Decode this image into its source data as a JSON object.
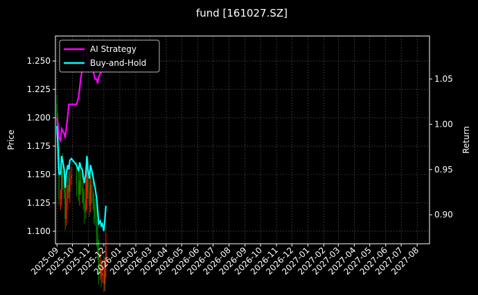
{
  "chart_data": {
    "type": "line",
    "title": "fund [161027.SZ]",
    "ylabel_left": "Price",
    "ylabel_right": "Return",
    "xlim": [
      "2025-08-29",
      "2027-08-25"
    ],
    "ylim_left": [
      1.089,
      1.272
    ],
    "ylim_right": [
      0.868,
      1.0975
    ],
    "grid": true,
    "legend_placement": "upper-left",
    "x_ticks": [
      "2025-09",
      "2025-10",
      "2025-11",
      "2025-12",
      "2026-01",
      "2026-02",
      "2026-03",
      "2026-04",
      "2026-05",
      "2026-06",
      "2026-07",
      "2026-08",
      "2026-09",
      "2026-10",
      "2026-11",
      "2026-12",
      "2027-01",
      "2027-02",
      "2027-03",
      "2027-04",
      "2027-05",
      "2027-06",
      "2027-07",
      "2027-08"
    ],
    "y_ticks_left": [
      "1.100",
      "1.125",
      "1.150",
      "1.175",
      "1.200",
      "1.225",
      "1.250"
    ],
    "y_ticks_right": [
      "0.90",
      "0.95",
      "1.00",
      "1.05"
    ],
    "price_per_return": 1.1945,
    "dates": [
      "2025-09-01",
      "2025-09-03",
      "2025-09-05",
      "2025-09-08",
      "2025-09-10",
      "2025-09-12",
      "2025-09-15",
      "2025-09-17",
      "2025-09-19",
      "2025-09-22",
      "2025-09-24",
      "2025-09-26",
      "2025-09-29",
      "2025-10-09",
      "2025-10-13",
      "2025-10-15",
      "2025-10-17",
      "2025-10-20",
      "2025-10-22",
      "2025-10-24",
      "2025-10-27",
      "2025-10-29",
      "2025-10-31",
      "2025-11-03",
      "2025-11-05",
      "2025-11-07",
      "2025-11-10",
      "2025-11-12",
      "2025-11-14",
      "2025-11-17",
      "2025-11-19",
      "2025-11-21",
      "2025-11-24",
      "2025-11-26",
      "2025-11-28",
      "2025-12-01",
      "2025-12-03",
      "2025-12-05"
    ],
    "series": [
      {
        "name": "AI Strategy",
        "color": "#ff00ff",
        "values": [
          1.007,
          1.0,
          0.985,
          0.982,
          0.995,
          0.993,
          0.99,
          0.985,
          0.995,
          1.01,
          1.022,
          1.022,
          1.022,
          1.022,
          1.03,
          1.04,
          1.05,
          1.06,
          1.075,
          1.085,
          1.085,
          1.08,
          1.07,
          1.065,
          1.07,
          1.065,
          1.06,
          1.055,
          1.05,
          1.05,
          1.045,
          1.052,
          1.056,
          1.058,
          1.06,
          1.06,
          1.06,
          1.062
        ]
      },
      {
        "name": "Buy-and-Hold",
        "color": "#00ffff",
        "values": [
          0.998,
          0.975,
          0.945,
          0.945,
          0.965,
          0.96,
          0.95,
          0.93,
          0.945,
          0.955,
          0.95,
          0.96,
          0.962,
          0.955,
          0.948,
          0.958,
          0.953,
          0.95,
          0.942,
          0.935,
          0.945,
          0.965,
          0.95,
          0.94,
          0.955,
          0.95,
          0.942,
          0.935,
          0.93,
          0.918,
          0.905,
          0.89,
          0.893,
          0.888,
          0.89,
          0.882,
          0.895,
          0.91
        ]
      }
    ],
    "candle_colors": {
      "up": "#ff2000",
      "down": "#008000"
    }
  }
}
